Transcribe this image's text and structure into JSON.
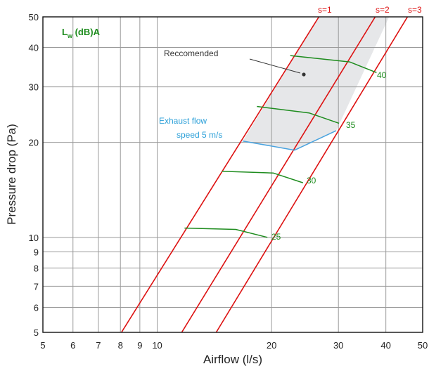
{
  "chart_data": {
    "type": "line",
    "xlabel": "Airflow (l/s)",
    "ylabel": "Pressure drop (Pa)",
    "x_scale": "log",
    "y_scale": "log",
    "xlim": [
      5,
      50
    ],
    "ylim": [
      5,
      50
    ],
    "x_ticks": [
      5,
      6,
      7,
      8,
      9,
      10,
      20,
      30,
      40,
      50
    ],
    "y_ticks": [
      5,
      6,
      7,
      8,
      9,
      10,
      20,
      30,
      40,
      50
    ],
    "x_tick_labels": [
      "5",
      "6",
      "7",
      "8",
      "9",
      "10",
      "20",
      "30",
      "40",
      "50"
    ],
    "y_tick_labels": [
      "5",
      "6",
      "7",
      "8",
      "9",
      "10",
      "20",
      "30",
      "40",
      "50"
    ],
    "grid": true,
    "colors": {
      "s_lines": "#dd1111",
      "sound_lines": "#1e8c1e",
      "exhaust_line": "#4aa3df",
      "recommended_fill": "#e6e7e9",
      "grid": "#9a9a9a",
      "exhaust_text": "#2a9fd8",
      "sound_text": "#1e8c1e"
    },
    "series": [
      {
        "name": "s=1",
        "kind": "s",
        "x": [
          8.05,
          26.65
        ],
        "y": [
          5,
          50
        ]
      },
      {
        "name": "s=2",
        "kind": "s",
        "x": [
          11.6,
          37.5
        ],
        "y": [
          5,
          50
        ]
      },
      {
        "name": "s=3",
        "kind": "s",
        "x": [
          14.3,
          45.6
        ],
        "y": [
          5,
          50
        ]
      },
      {
        "name": "25",
        "kind": "sound",
        "x": [
          11.8,
          16.1,
          19.5
        ],
        "y": [
          10.7,
          10.6,
          10.0
        ]
      },
      {
        "name": "30",
        "kind": "sound",
        "x": [
          14.8,
          20.2,
          24.2
        ],
        "y": [
          16.2,
          16.0,
          14.9
        ]
      },
      {
        "name": "35",
        "kind": "sound",
        "x": [
          18.3,
          25.1,
          30.1
        ],
        "y": [
          26.0,
          24.8,
          23.0
        ]
      },
      {
        "name": "40",
        "kind": "sound",
        "x": [
          22.4,
          32.1,
          37.8
        ],
        "y": [
          37.7,
          36.0,
          33.3
        ]
      },
      {
        "name": "Exhaust flow speed 5 m/s",
        "kind": "exhaust",
        "x": [
          16.8,
          23.0,
          29.6
        ],
        "y": [
          20.2,
          18.9,
          21.8
        ]
      }
    ],
    "recommended_region": {
      "x": [
        16.8,
        23.0,
        29.6,
        40.8,
        26.65
      ],
      "y": [
        20.2,
        18.9,
        21.8,
        50,
        50
      ]
    },
    "text": {
      "lw_main": "L",
      "lw_sub": "w",
      "lw_rest": " (dB)A",
      "recommended": "Reccomended",
      "exhaust_line1": "Exhaust flow",
      "exhaust_line2": "speed  5 m/s",
      "s1": "s=1",
      "s2": "s=2",
      "s3": "s=3",
      "db25": "25",
      "db30": "30",
      "db35": "35",
      "db40": "40"
    }
  }
}
